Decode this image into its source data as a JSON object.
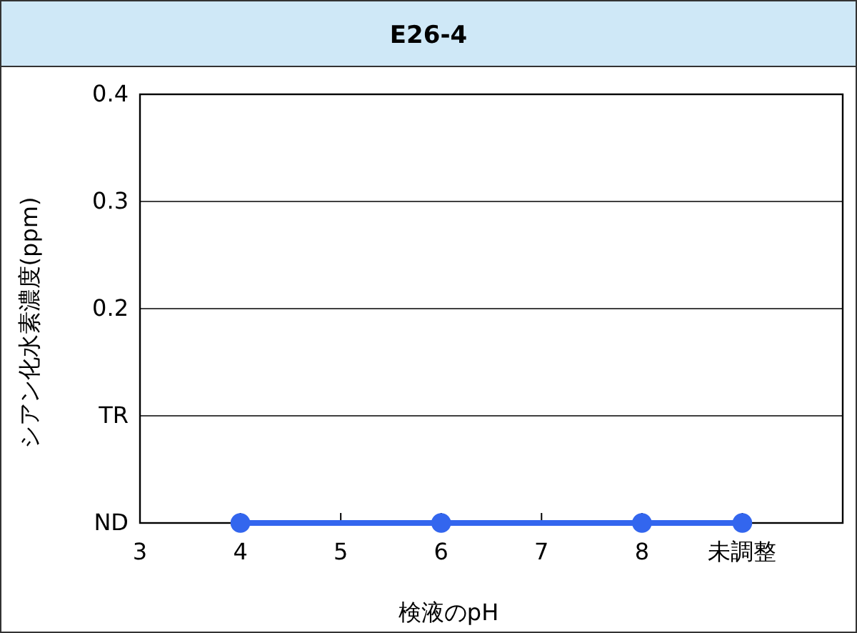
{
  "chart_data": {
    "type": "line",
    "title": "E26-4",
    "xlabel": "検液のpH",
    "ylabel": "シアン化水素濃度(ppm)",
    "x": [
      4,
      6,
      8,
      9
    ],
    "series": [
      {
        "color": "#3366ee",
        "values": [
          0,
          0,
          0,
          0
        ]
      }
    ],
    "xlim": [
      3,
      10
    ],
    "xticks": [
      3,
      4,
      5,
      6,
      7,
      8,
      {
        "value": 9,
        "label": "未調整"
      }
    ],
    "ylim": [
      0,
      0.4
    ],
    "yticks": [
      {
        "value": 0,
        "label": "ND"
      },
      {
        "value": 0.1,
        "label": "TR"
      },
      0.2,
      0.3,
      0.4
    ],
    "grid": "y",
    "marker": "circle",
    "line_style": "solid"
  }
}
